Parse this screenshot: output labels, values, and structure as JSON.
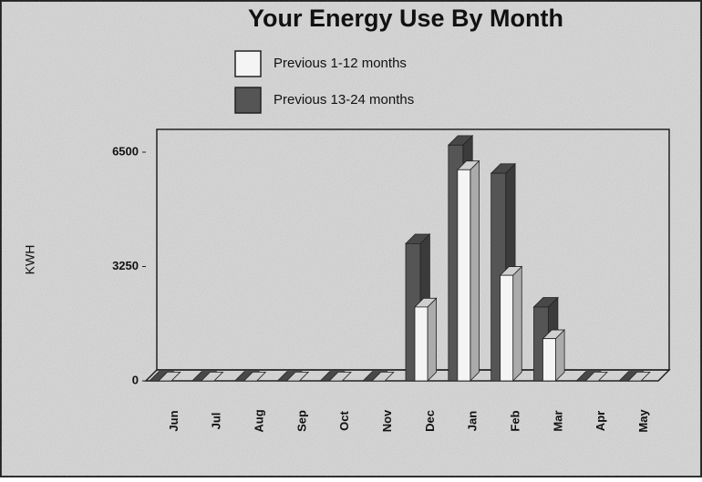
{
  "chart_data": {
    "type": "bar3d",
    "title": "Your Energy Use By Month",
    "y_label": "KWH",
    "categories": [
      "Jun",
      "Jul",
      "Aug",
      "Sep",
      "Oct",
      "Nov",
      "Dec",
      "Jan",
      "Feb",
      "Mar",
      "Apr",
      "May"
    ],
    "series": [
      {
        "name": "Previous 1-12 months",
        "color": "#f4f4f4",
        "values": [
          0,
          0,
          0,
          0,
          0,
          0,
          2100,
          6000,
          3000,
          1200,
          0,
          0
        ]
      },
      {
        "name": "Previous 13-24 months",
        "color": "#555555",
        "values": [
          0,
          0,
          0,
          0,
          0,
          0,
          3900,
          6700,
          5900,
          2100,
          0,
          0
        ]
      }
    ],
    "ylim": [
      0,
      6500
    ],
    "yticks": [
      0,
      3250,
      6500
    ],
    "grid": false
  }
}
